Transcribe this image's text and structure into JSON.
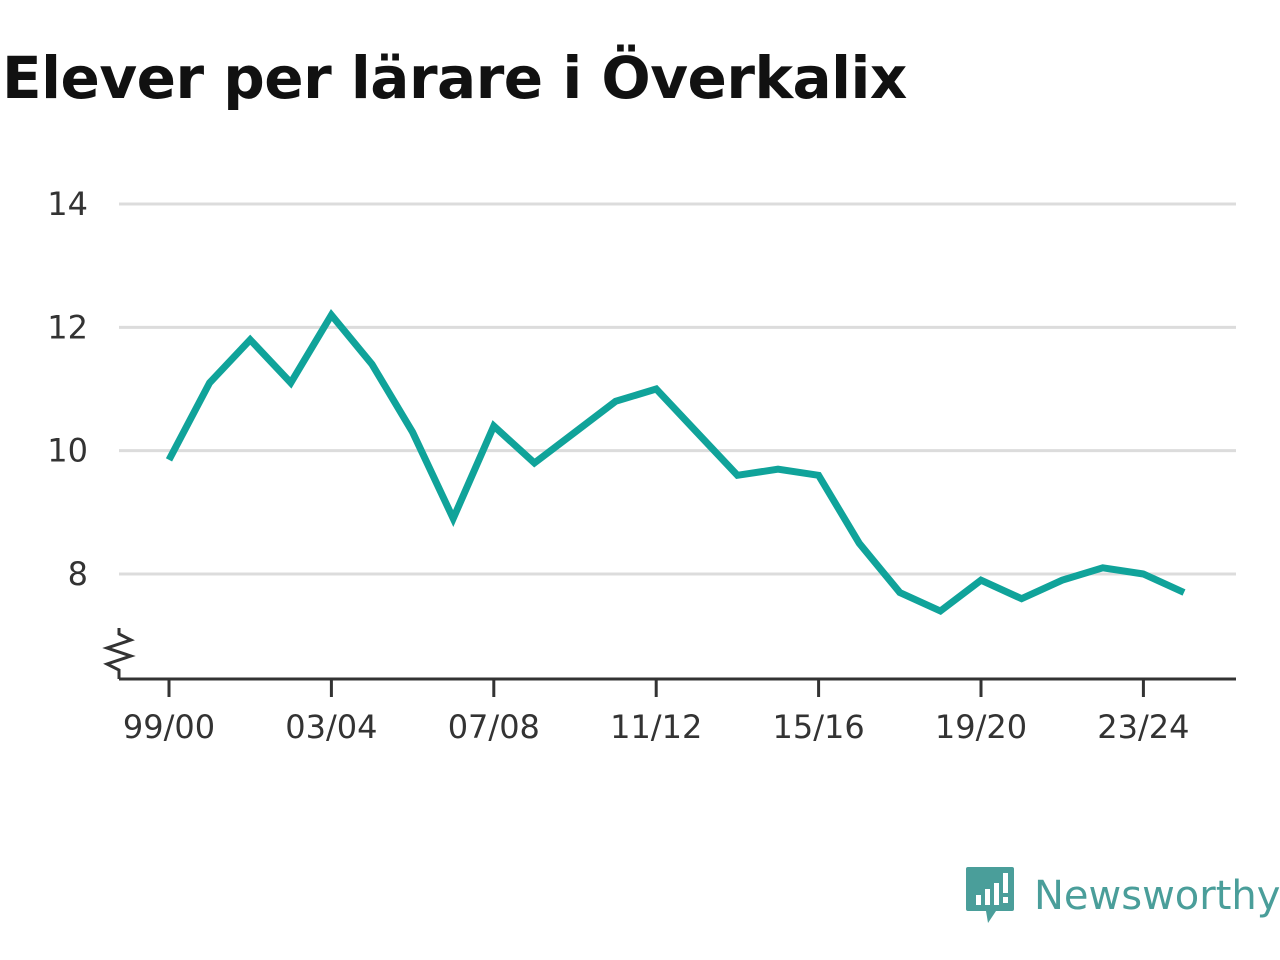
{
  "title": "Elever per lärare i Överkalix",
  "brand": {
    "name": "Newsworthy",
    "icon": "newsworthy-logo-icon",
    "color": "#4a9e9a"
  },
  "chart_data": {
    "type": "line",
    "title": "Elever per lärare i Överkalix",
    "xlabel": "",
    "ylabel": "",
    "x": [
      "99/00",
      "00/01",
      "01/02",
      "02/03",
      "03/04",
      "04/05",
      "05/06",
      "06/07",
      "07/08",
      "08/09",
      "09/10",
      "10/11",
      "11/12",
      "12/13",
      "13/14",
      "14/15",
      "15/16",
      "16/17",
      "17/18",
      "18/19",
      "19/20",
      "20/21",
      "21/22",
      "22/23",
      "23/24",
      "24/25"
    ],
    "x_tick_labels": [
      "99/00",
      "03/04",
      "07/08",
      "11/12",
      "15/16",
      "19/20",
      "23/24"
    ],
    "y_ticks": [
      14,
      12,
      10,
      8
    ],
    "ylim": [
      6.3,
      14
    ],
    "y_axis_break": true,
    "grid": true,
    "series": [
      {
        "color": "#10a39a",
        "values": [
          9.85,
          11.1,
          11.8,
          11.1,
          12.2,
          11.4,
          10.3,
          8.9,
          10.4,
          9.8,
          10.3,
          10.8,
          11.0,
          10.3,
          9.6,
          9.7,
          9.6,
          8.5,
          7.7,
          7.4,
          7.9,
          7.6,
          7.9,
          8.1,
          8.0,
          7.7
        ]
      }
    ]
  }
}
